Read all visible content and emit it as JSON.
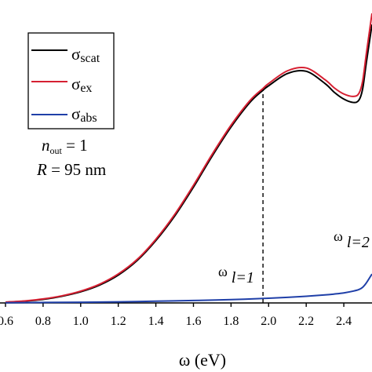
{
  "chart_data": {
    "type": "line",
    "xlabel": "ω (eV)",
    "xlim": [
      0.6,
      2.55
    ],
    "ylim": [
      0,
      1.36
    ],
    "x_ticks": [
      "0.6",
      "0.8",
      "1.0",
      "1.2",
      "1.4",
      "1.6",
      "1.8",
      "2.0",
      "2.2",
      "2.4"
    ],
    "legend": {
      "placement": "top-left",
      "entries": [
        {
          "symbol": "σ",
          "sub": "scat",
          "color": "#000000"
        },
        {
          "symbol": "σ",
          "sub": "ex",
          "color": "#d62032"
        },
        {
          "symbol": "σ",
          "sub": "abs",
          "color": "#1f3fa8"
        }
      ]
    },
    "params": {
      "n_main": "n",
      "n_sub": "out",
      "n_rest": " = 1",
      "r_main": "R",
      "r_rest": " = 95 nm"
    },
    "annotations": [
      {
        "main": "ω",
        "sub": "l=1",
        "x": 1.97
      },
      {
        "main": "ω",
        "sub": "l=2",
        "x": 2.55
      }
    ],
    "series": [
      {
        "key": "scat",
        "color": "#000000",
        "x": [
          0.6,
          0.7,
          0.8,
          0.9,
          1.0,
          1.1,
          1.2,
          1.3,
          1.4,
          1.5,
          1.6,
          1.7,
          1.8,
          1.9,
          1.97,
          2.0,
          2.1,
          2.2,
          2.3,
          2.35,
          2.4,
          2.45,
          2.48,
          2.5,
          2.52,
          2.55
        ],
        "values": [
          0.003,
          0.008,
          0.016,
          0.03,
          0.05,
          0.08,
          0.125,
          0.19,
          0.28,
          0.39,
          0.52,
          0.66,
          0.79,
          0.9,
          0.955,
          0.975,
          1.03,
          1.04,
          0.985,
          0.945,
          0.915,
          0.9,
          0.91,
          0.96,
          1.08,
          1.25
        ]
      },
      {
        "key": "ex",
        "color": "#d62032",
        "x": [
          0.6,
          0.7,
          0.8,
          0.9,
          1.0,
          1.1,
          1.2,
          1.3,
          1.4,
          1.5,
          1.6,
          1.7,
          1.8,
          1.9,
          1.97,
          2.0,
          2.1,
          2.2,
          2.3,
          2.35,
          2.4,
          2.45,
          2.48,
          2.5,
          2.52,
          2.55
        ],
        "values": [
          0.004,
          0.009,
          0.018,
          0.032,
          0.053,
          0.084,
          0.13,
          0.195,
          0.286,
          0.397,
          0.528,
          0.668,
          0.798,
          0.908,
          0.963,
          0.985,
          1.042,
          1.055,
          1.002,
          0.965,
          0.938,
          0.927,
          0.94,
          0.995,
          1.12,
          1.3
        ]
      },
      {
        "key": "abs",
        "color": "#1f3fa8",
        "x": [
          0.6,
          0.8,
          1.0,
          1.2,
          1.4,
          1.6,
          1.8,
          2.0,
          2.1,
          2.2,
          2.3,
          2.35,
          2.4,
          2.45,
          2.48,
          2.5,
          2.52,
          2.55
        ],
        "values": [
          0.001,
          0.002,
          0.003,
          0.005,
          0.008,
          0.011,
          0.015,
          0.021,
          0.025,
          0.03,
          0.036,
          0.04,
          0.045,
          0.053,
          0.06,
          0.07,
          0.09,
          0.13
        ]
      }
    ]
  }
}
